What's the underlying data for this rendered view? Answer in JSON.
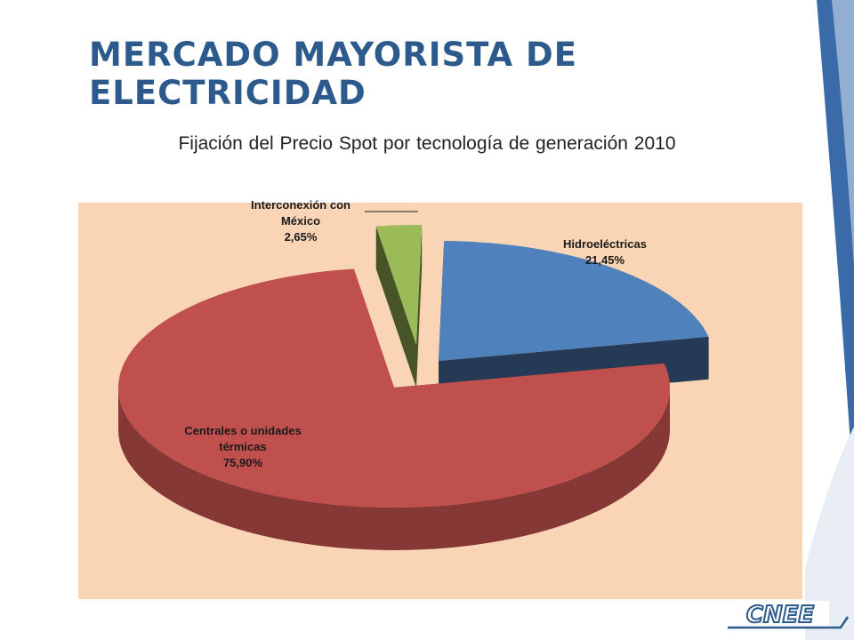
{
  "slide": {
    "title": "MERCADO MAYORISTA DE ELECTRICIDAD",
    "logo_text": "CNEE",
    "accent_color": "#2d5a8c"
  },
  "chart_data": {
    "type": "pie",
    "title": "Fijación del Precio Spot por tecnología de generación 2010",
    "three_d": true,
    "exploded": true,
    "background_color": "#f9d5b5",
    "slices": [
      {
        "name_lines": [
          "Hidroeléctricas"
        ],
        "value": 21.45,
        "label": "21,45%",
        "color": "#4f81bd"
      },
      {
        "name_lines": [
          "Centrales o unidades",
          "térmicas"
        ],
        "value": 75.9,
        "label": "75,90%",
        "color": "#c0504d"
      },
      {
        "name_lines": [
          "Interconexión con",
          "México"
        ],
        "value": 2.65,
        "label": "2,65%",
        "color": "#9bbb59"
      }
    ]
  }
}
